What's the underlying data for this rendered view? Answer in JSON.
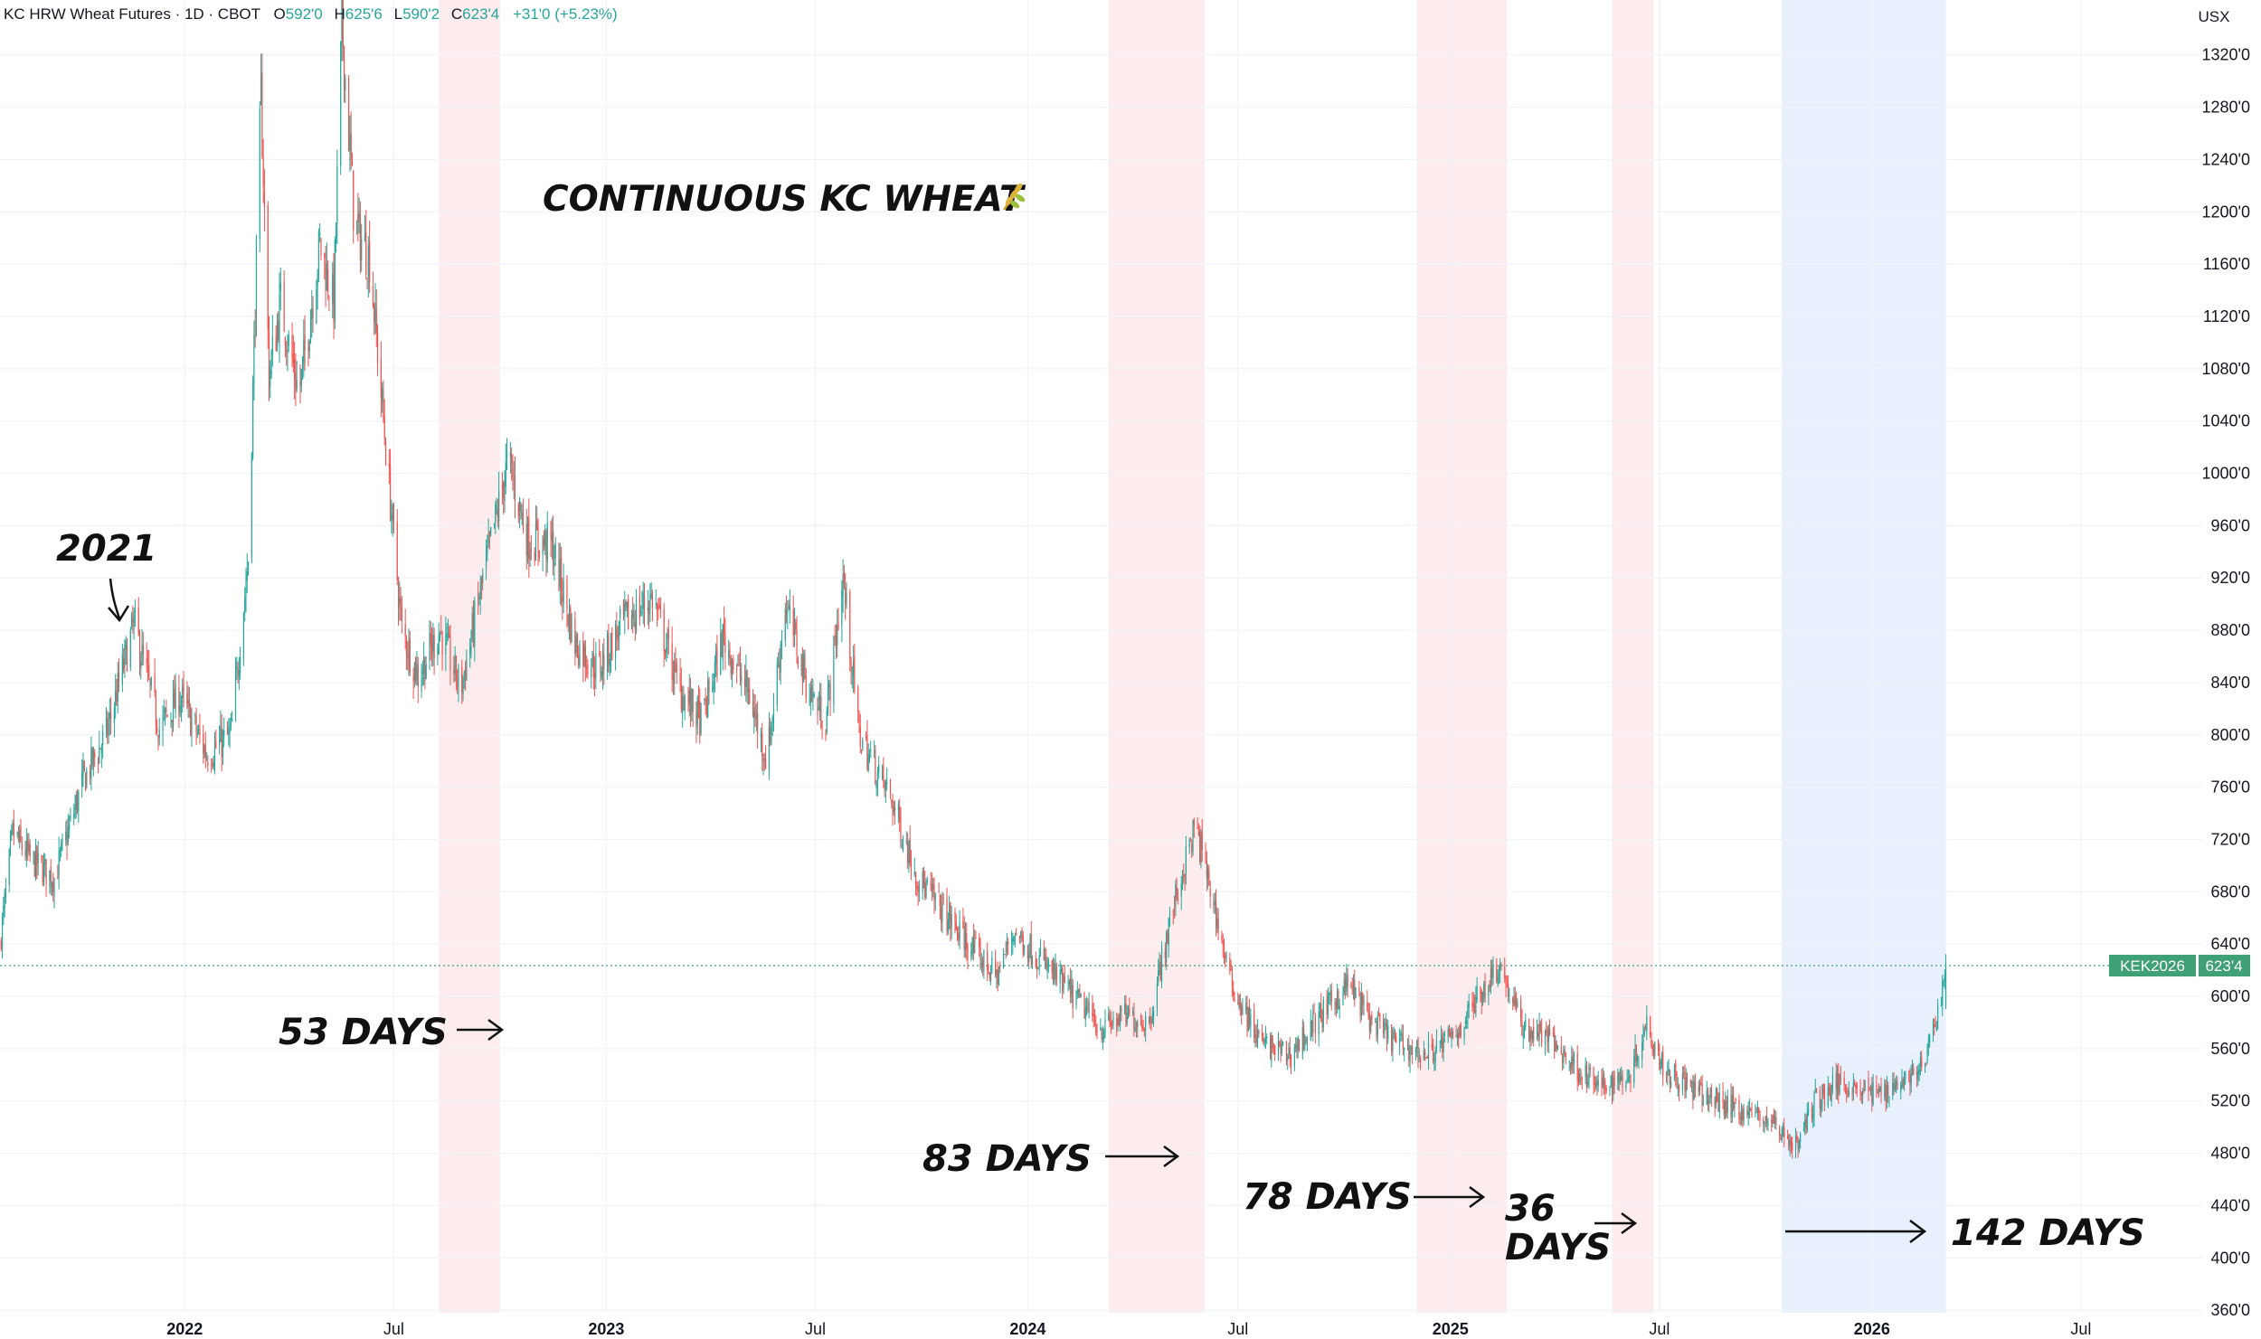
{
  "legend": {
    "symbol": "KC HRW Wheat Futures · 1D · CBOT",
    "o_label": "O",
    "o_value": "592'0",
    "h_label": "H",
    "h_value": "625'6",
    "l_label": "L",
    "l_value": "590'2",
    "c_label": "C",
    "c_value": "623'4",
    "change": "+31'0 (+5.23%)"
  },
  "currency_button": "USX",
  "price_tag": {
    "ticker": "KEK2026",
    "value": "623'4"
  },
  "colors": {
    "up": "#26a69a",
    "down": "#ef5350",
    "grid": "#f0f3fa",
    "red_band": "#fdeced",
    "blue_band": "#e8f0fe",
    "price_tag": "#3f9f75",
    "legend_up": "#26a69a"
  },
  "chart_data": {
    "type": "candlestick",
    "title": "CONTINUOUS KC WHEAT",
    "title_icon": "wheat-icon",
    "grid": true,
    "y_axis_side": "right",
    "ylim": [
      358,
      1362
    ],
    "xlim": [
      "2021-07-25",
      "2026-10-14"
    ],
    "y_ticks": [
      "1320'0",
      "1280'0",
      "1240'0",
      "1200'0",
      "1160'0",
      "1120'0",
      "1080'0",
      "1040'0",
      "1000'0",
      "960'0",
      "920'0",
      "880'0",
      "840'0",
      "800'0",
      "760'0",
      "720'0",
      "680'0",
      "640'0",
      "600'0",
      "560'0",
      "520'0",
      "480'0",
      "440'0",
      "400'0",
      "360'0"
    ],
    "x_ticks": [
      {
        "label": "2022",
        "date": "2022-01-01"
      },
      {
        "label": "Jul",
        "date": "2022-07-01"
      },
      {
        "label": "2023",
        "date": "2023-01-01"
      },
      {
        "label": "Jul",
        "date": "2023-07-01"
      },
      {
        "label": "2024",
        "date": "2024-01-01"
      },
      {
        "label": "Jul",
        "date": "2024-07-01"
      },
      {
        "label": "2025",
        "date": "2025-01-01"
      },
      {
        "label": "Jul",
        "date": "2025-07-01"
      },
      {
        "label": "2026",
        "date": "2026-01-01"
      },
      {
        "label": "Jul",
        "date": "2026-07-01"
      }
    ],
    "last_price": 623.5,
    "price_path": [
      [
        "2021-07-25",
        640
      ],
      [
        "2021-08-05",
        725
      ],
      [
        "2021-08-20",
        705
      ],
      [
        "2021-09-10",
        690
      ],
      [
        "2021-10-05",
        765
      ],
      [
        "2021-10-25",
        800
      ],
      [
        "2021-11-18",
        885
      ],
      [
        "2021-12-10",
        805
      ],
      [
        "2021-12-28",
        830
      ],
      [
        "2022-01-20",
        785
      ],
      [
        "2022-02-10",
        800
      ],
      [
        "2022-02-25",
        935
      ],
      [
        "2022-03-08",
        1290
      ],
      [
        "2022-03-15",
        1075
      ],
      [
        "2022-03-25",
        1130
      ],
      [
        "2022-04-10",
        1060
      ],
      [
        "2022-04-28",
        1175
      ],
      [
        "2022-05-10",
        1130
      ],
      [
        "2022-05-17",
        1345
      ],
      [
        "2022-05-28",
        1190
      ],
      [
        "2022-06-10",
        1165
      ],
      [
        "2022-06-25",
        1010
      ],
      [
        "2022-07-08",
        880
      ],
      [
        "2022-07-22",
        845
      ],
      [
        "2022-08-10",
        880
      ],
      [
        "2022-08-28",
        835
      ],
      [
        "2022-09-20",
        935
      ],
      [
        "2022-10-08",
        1010
      ],
      [
        "2022-10-25",
        950
      ],
      [
        "2022-11-15",
        945
      ],
      [
        "2022-12-05",
        870
      ],
      [
        "2022-12-25",
        850
      ],
      [
        "2023-01-15",
        885
      ],
      [
        "2023-02-10",
        905
      ],
      [
        "2023-03-05",
        835
      ],
      [
        "2023-03-25",
        810
      ],
      [
        "2023-04-12",
        875
      ],
      [
        "2023-05-05",
        830
      ],
      [
        "2023-05-20",
        780
      ],
      [
        "2023-06-05",
        900
      ],
      [
        "2023-06-25",
        835
      ],
      [
        "2023-07-10",
        810
      ],
      [
        "2023-07-25",
        920
      ],
      [
        "2023-08-08",
        800
      ],
      [
        "2023-09-05",
        750
      ],
      [
        "2023-09-28",
        690
      ],
      [
        "2023-10-20",
        665
      ],
      [
        "2023-11-10",
        640
      ],
      [
        "2023-12-05",
        615
      ],
      [
        "2023-12-20",
        650
      ],
      [
        "2024-01-15",
        625
      ],
      [
        "2024-02-15",
        595
      ],
      [
        "2024-03-05",
        575
      ],
      [
        "2024-03-25",
        585
      ],
      [
        "2024-04-15",
        580
      ],
      [
        "2024-05-05",
        665
      ],
      [
        "2024-05-25",
        730
      ],
      [
        "2024-06-05",
        690
      ],
      [
        "2024-06-25",
        610
      ],
      [
        "2024-07-20",
        565
      ],
      [
        "2024-08-15",
        555
      ],
      [
        "2024-09-10",
        585
      ],
      [
        "2024-10-05",
        610
      ],
      [
        "2024-10-25",
        580
      ],
      [
        "2024-11-15",
        565
      ],
      [
        "2024-12-10",
        555
      ],
      [
        "2025-01-05",
        570
      ],
      [
        "2025-01-25",
        600
      ],
      [
        "2025-02-12",
        625
      ],
      [
        "2025-03-05",
        575
      ],
      [
        "2025-03-25",
        570
      ],
      [
        "2025-04-15",
        550
      ],
      [
        "2025-05-10",
        530
      ],
      [
        "2025-06-05",
        540
      ],
      [
        "2025-06-20",
        580
      ],
      [
        "2025-07-05",
        545
      ],
      [
        "2025-08-05",
        525
      ],
      [
        "2025-09-05",
        515
      ],
      [
        "2025-10-05",
        505
      ],
      [
        "2025-10-28",
        485
      ],
      [
        "2025-11-12",
        520
      ],
      [
        "2025-12-05",
        535
      ],
      [
        "2026-01-05",
        525
      ],
      [
        "2026-01-25",
        535
      ],
      [
        "2026-02-15",
        545
      ],
      [
        "2026-03-01",
        595
      ],
      [
        "2026-03-06",
        623.5
      ]
    ],
    "shaded_periods": [
      {
        "start": "2022-08-09",
        "end": "2022-10-01",
        "days": 53,
        "color": "red"
      },
      {
        "start": "2024-03-11",
        "end": "2024-06-02",
        "days": 83,
        "color": "red"
      },
      {
        "start": "2024-12-03",
        "end": "2025-02-19",
        "days": 78,
        "color": "red"
      },
      {
        "start": "2025-05-21",
        "end": "2025-06-26",
        "days": 36,
        "color": "red"
      },
      {
        "start": "2025-10-15",
        "end": "2026-03-06",
        "days": 142,
        "color": "blue"
      }
    ],
    "annotations": [
      {
        "id": "2021",
        "text": "2021"
      },
      {
        "id": "53",
        "text": "53 DAYS"
      },
      {
        "id": "83",
        "text": "83 DAYS"
      },
      {
        "id": "78",
        "text": "78 DAYS"
      },
      {
        "id": "36",
        "text": "36",
        "text2": "DAYS"
      },
      {
        "id": "142",
        "text": "142 DAYS"
      }
    ]
  }
}
